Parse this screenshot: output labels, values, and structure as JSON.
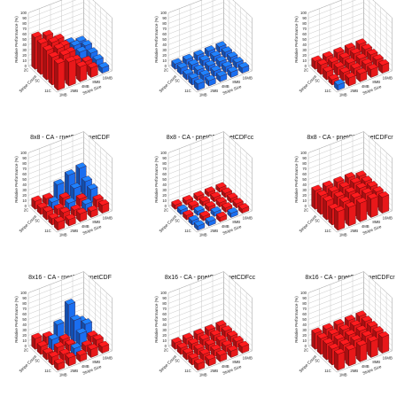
{
  "chart_data": [
    {
      "type": "bar3d",
      "caption": "8x8 - CA - rnetCDF-pnetCDF",
      "zlabel": "Relative Performance (%)",
      "ylabel": "Stripe Count",
      "xlabel": "Stripe Size",
      "zticks": [
        0,
        10,
        20,
        30,
        40,
        50,
        60,
        70,
        80,
        90,
        100
      ],
      "zlim": [
        0,
        100
      ],
      "stripe_size_ticks": [
        "1MB",
        "2MB",
        "4MB",
        "8MB",
        "16MB"
      ],
      "stripe_count_ticks": [
        "2C",
        "5C",
        "11C"
      ],
      "stripe_sizes": [
        "1MB",
        "2MB",
        "4MB",
        "8MB",
        "16MB"
      ],
      "stripe_counts": [
        "2C",
        "4C",
        "5C",
        "8C",
        "11C"
      ],
      "colors": {
        "positive": "#e8181a",
        "negative": "#1a6ef0"
      },
      "grid": true,
      "values": [
        [
          60,
          55,
          40,
          -25,
          -20
        ],
        [
          58,
          52,
          38,
          -30,
          -22
        ],
        [
          55,
          50,
          35,
          -28,
          -18
        ],
        [
          52,
          48,
          30,
          20,
          -15
        ],
        [
          50,
          45,
          28,
          18,
          -10
        ]
      ]
    },
    {
      "type": "bar3d",
      "caption": "8x8 - CA - pnetCDF-pnetCDFcc",
      "zlabel": "Relative Performance (%)",
      "ylabel": "Stripe Count",
      "xlabel": "Stripe Size",
      "zticks": [
        0,
        10,
        20,
        30,
        40,
        50,
        60,
        70,
        80,
        90,
        100
      ],
      "zlim": [
        0,
        100
      ],
      "stripe_size_ticks": [
        "1MB",
        "2MB",
        "4MB",
        "8MB",
        "16MB"
      ],
      "stripe_count_ticks": [
        "2C",
        "5C",
        "11C"
      ],
      "stripe_sizes": [
        "1MB",
        "2MB",
        "4MB",
        "8MB",
        "16MB"
      ],
      "stripe_counts": [
        "2C",
        "4C",
        "5C",
        "8C",
        "11C"
      ],
      "colors": {
        "positive": "#e8181a",
        "negative": "#1a6ef0"
      },
      "grid": true,
      "values": [
        [
          -10,
          -10,
          -10,
          -10,
          -10
        ],
        [
          -12,
          -10,
          -10,
          -10,
          -10
        ],
        [
          -10,
          -10,
          -10,
          -10,
          -10
        ],
        [
          -12,
          -10,
          -10,
          -10,
          -10
        ],
        [
          -12,
          -10,
          -10,
          -10,
          -10
        ]
      ]
    },
    {
      "type": "bar3d",
      "caption": "8x8 - CA - pnetCDF-pnetCDFcr",
      "zlabel": "Relative Performance (%)",
      "ylabel": "Stripe Count",
      "xlabel": "Stripe Size",
      "zticks": [
        0,
        10,
        20,
        30,
        40,
        50,
        60,
        70,
        80,
        90,
        100
      ],
      "zlim": [
        0,
        100
      ],
      "stripe_size_ticks": [
        "1MB",
        "2MB",
        "4MB",
        "8MB",
        "16MB"
      ],
      "stripe_counts": [
        "2C",
        "4C",
        "5C",
        "8C",
        "11C"
      ],
      "stripe_count_ticks": [
        "2C",
        "5C",
        "11C"
      ],
      "stripe_sizes": [
        "1MB",
        "2MB",
        "4MB",
        "8MB",
        "16MB"
      ],
      "colors": {
        "positive": "#e8181a",
        "negative": "#1a6ef0"
      },
      "grid": true,
      "values": [
        [
          15,
          15,
          15,
          15,
          15
        ],
        [
          18,
          15,
          15,
          15,
          15
        ],
        [
          15,
          15,
          15,
          15,
          15
        ],
        [
          10,
          15,
          15,
          15,
          15
        ],
        [
          -10,
          15,
          15,
          15,
          15
        ]
      ]
    },
    {
      "type": "bar3d",
      "caption": "8x16 - CA - rnetCDF-pnetCDF",
      "zlabel": "Relative Performance (%)",
      "ylabel": "Stripe Count",
      "xlabel": "Stripe Size",
      "zticks": [
        0,
        10,
        20,
        30,
        40,
        50,
        60,
        70,
        80,
        90,
        100
      ],
      "zlim": [
        0,
        100
      ],
      "stripe_size_ticks": [
        "1MB",
        "2MB",
        "4MB",
        "8MB",
        "16MB"
      ],
      "stripe_count_ticks": [
        "2C",
        "5C",
        "11C"
      ],
      "stripe_sizes": [
        "1MB",
        "2MB",
        "4MB",
        "8MB",
        "16MB"
      ],
      "stripe_counts": [
        "2C",
        "4C",
        "5C",
        "8C",
        "11C"
      ],
      "colors": {
        "positive": "#e8181a",
        "negative": "#1a6ef0"
      },
      "grid": true,
      "values": [
        [
          15,
          12,
          -30,
          -40,
          -45
        ],
        [
          12,
          -15,
          15,
          -25,
          -30
        ],
        [
          15,
          12,
          -15,
          15,
          -25
        ],
        [
          12,
          15,
          12,
          -15,
          15
        ],
        [
          15,
          12,
          15,
          12,
          15
        ]
      ]
    },
    {
      "type": "bar3d",
      "caption": "8x16 - CA - pnetCDF-pnetCDFcc",
      "zlabel": "Relative Performance (%)",
      "ylabel": "Stripe Count",
      "xlabel": "Stripe Size",
      "zticks": [
        0,
        10,
        20,
        30,
        40,
        50,
        60,
        70,
        80,
        90,
        100
      ],
      "zlim": [
        0,
        100
      ],
      "stripe_size_ticks": [
        "1MB",
        "2MB",
        "4MB",
        "8MB",
        "16MB"
      ],
      "stripe_count_ticks": [
        "2C",
        "5C",
        "11C"
      ],
      "stripe_sizes": [
        "1MB",
        "2MB",
        "4MB",
        "8MB",
        "16MB"
      ],
      "stripe_counts": [
        "2C",
        "4C",
        "5C",
        "8C",
        "11C"
      ],
      "colors": {
        "positive": "#e8181a",
        "negative": "#1a6ef0"
      },
      "grid": true,
      "values": [
        [
          8,
          8,
          8,
          8,
          8
        ],
        [
          -8,
          8,
          8,
          8,
          8
        ],
        [
          8,
          -8,
          8,
          8,
          8
        ],
        [
          -8,
          8,
          -8,
          8,
          8
        ],
        [
          -8,
          -8,
          8,
          -8,
          8
        ]
      ]
    },
    {
      "type": "bar3d",
      "caption": "8x16 - CA - pnetCDF-pnetCDFcr",
      "zlabel": "Relative Performance (%)",
      "ylabel": "Stripe Count",
      "xlabel": "Stripe Size",
      "zticks": [
        0,
        10,
        20,
        30,
        40,
        50,
        60,
        70,
        80,
        90,
        100
      ],
      "zlim": [
        0,
        100
      ],
      "stripe_size_ticks": [
        "1MB",
        "2MB",
        "4MB",
        "8MB",
        "16MB"
      ],
      "stripe_count_ticks": [
        "2C",
        "5C",
        "11C"
      ],
      "stripe_sizes": [
        "1MB",
        "2MB",
        "4MB",
        "8MB",
        "16MB"
      ],
      "stripe_counts": [
        "2C",
        "4C",
        "5C",
        "8C",
        "11C"
      ],
      "colors": {
        "positive": "#e8181a",
        "negative": "#1a6ef0"
      },
      "grid": true,
      "values": [
        [
          35,
          35,
          35,
          35,
          30
        ],
        [
          35,
          35,
          35,
          35,
          30
        ],
        [
          35,
          35,
          35,
          35,
          30
        ],
        [
          30,
          35,
          35,
          35,
          30
        ],
        [
          35,
          35,
          35,
          35,
          30
        ]
      ]
    },
    {
      "type": "bar3d",
      "caption": "",
      "zlabel": "Relative Performance (%)",
      "ylabel": "Stripe Count",
      "xlabel": "Stripe Size",
      "zticks": [
        0,
        10,
        20,
        30,
        40,
        50,
        60,
        70,
        80,
        90,
        100
      ],
      "zlim": [
        0,
        100
      ],
      "stripe_size_ticks": [
        "1MB",
        "2MB",
        "4MB",
        "8MB",
        "16MB"
      ],
      "stripe_count_ticks": [
        "2C",
        "5C",
        "11C"
      ],
      "stripe_sizes": [
        "1MB",
        "2MB",
        "4MB",
        "8MB",
        "16MB"
      ],
      "stripe_counts": [
        "2C",
        "4C",
        "5C",
        "8C",
        "11C"
      ],
      "colors": {
        "positive": "#e8181a",
        "negative": "#1a6ef0"
      },
      "grid": true,
      "values": [
        [
          20,
          15,
          -30,
          -60,
          -20
        ],
        [
          15,
          -20,
          12,
          -40,
          -25
        ],
        [
          12,
          15,
          12,
          -25,
          12
        ],
        [
          15,
          12,
          -15,
          12,
          15
        ],
        [
          12,
          15,
          12,
          15,
          12
        ]
      ]
    },
    {
      "type": "bar3d",
      "caption": "",
      "zlabel": "Relative Performance (%)",
      "ylabel": "Stripe Count",
      "xlabel": "Stripe Size",
      "zticks": [
        0,
        10,
        20,
        30,
        40,
        50,
        60,
        70,
        80,
        90,
        100
      ],
      "zlim": [
        0,
        100
      ],
      "stripe_size_ticks": [
        "1MB",
        "2MB",
        "4MB",
        "8MB",
        "16MB"
      ],
      "stripe_count_ticks": [
        "2C",
        "5C",
        "11C"
      ],
      "stripe_sizes": [
        "1MB",
        "2MB",
        "4MB",
        "8MB",
        "16MB"
      ],
      "stripe_counts": [
        "2C",
        "4C",
        "5C",
        "8C",
        "11C"
      ],
      "colors": {
        "positive": "#e8181a",
        "negative": "#1a6ef0"
      },
      "grid": true,
      "values": [
        [
          12,
          12,
          12,
          12,
          12
        ],
        [
          12,
          12,
          12,
          12,
          12
        ],
        [
          12,
          12,
          12,
          12,
          12
        ],
        [
          12,
          12,
          12,
          12,
          12
        ],
        [
          12,
          12,
          12,
          12,
          12
        ]
      ]
    },
    {
      "type": "bar3d",
      "caption": "",
      "zlabel": "Relative Performance (%)",
      "ylabel": "Stripe Count",
      "xlabel": "Stripe Size",
      "zticks": [
        0,
        10,
        20,
        30,
        40,
        50,
        60,
        70,
        80,
        90,
        100
      ],
      "zlim": [
        0,
        100
      ],
      "stripe_size_ticks": [
        "1MB",
        "2MB",
        "4MB",
        "8MB",
        "16MB"
      ],
      "stripe_count_ticks": [
        "2C",
        "5C",
        "11C"
      ],
      "stripe_sizes": [
        "1MB",
        "2MB",
        "4MB",
        "8MB",
        "16MB"
      ],
      "stripe_counts": [
        "2C",
        "4C",
        "5C",
        "8C",
        "11C"
      ],
      "colors": {
        "positive": "#e8181a",
        "negative": "#1a6ef0"
      },
      "grid": true,
      "values": [
        [
          30,
          30,
          30,
          30,
          30
        ],
        [
          30,
          30,
          30,
          30,
          30
        ],
        [
          30,
          30,
          30,
          30,
          30
        ],
        [
          30,
          30,
          30,
          30,
          30
        ],
        [
          30,
          30,
          30,
          30,
          30
        ]
      ]
    }
  ]
}
